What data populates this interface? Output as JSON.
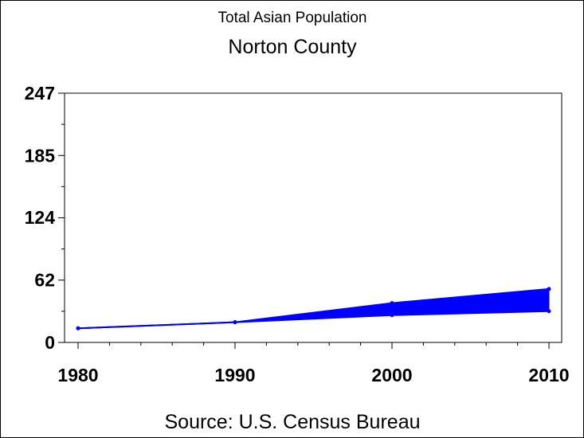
{
  "chart_data": {
    "type": "area",
    "title": "Total Asian Population",
    "subtitle": "Norton County",
    "footnote": "Source: U.S. Census Bureau",
    "xlabel": "",
    "ylabel": "",
    "x": [
      1980,
      1990,
      2000,
      2010
    ],
    "series": [
      {
        "values": [
          14,
          20,
          27,
          31
        ]
      },
      {
        "values": [
          14,
          20,
          39,
          53
        ]
      }
    ],
    "fill_between_series": true,
    "xlim": [
      1980,
      2010
    ],
    "ylim": [
      0,
      247
    ],
    "x_ticks": [
      "1980",
      "1990",
      "2000",
      "2010"
    ],
    "y_ticks": [
      "0",
      "62",
      "124",
      "185",
      "247"
    ],
    "y_tick_values": [
      0,
      62,
      124,
      185,
      247
    ],
    "grid": false,
    "colors": {
      "series": "#0000ff",
      "axes": "#000000",
      "background": "#ffffff"
    }
  }
}
